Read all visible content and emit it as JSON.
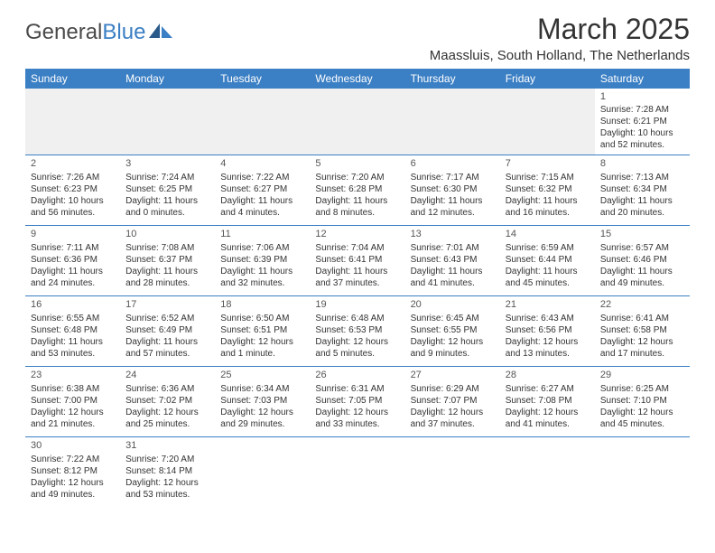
{
  "logo": {
    "text1": "General",
    "text2": "Blue"
  },
  "title": "March 2025",
  "location": "Maassluis, South Holland, The Netherlands",
  "colors": {
    "header_bg": "#3b7fc4",
    "header_text": "#ffffff",
    "border": "#3b7fc4",
    "body_text": "#333333",
    "empty_row_bg": "#f0f0f0",
    "page_bg": "#ffffff"
  },
  "day_headers": [
    "Sunday",
    "Monday",
    "Tuesday",
    "Wednesday",
    "Thursday",
    "Friday",
    "Saturday"
  ],
  "weeks": [
    [
      null,
      null,
      null,
      null,
      null,
      null,
      {
        "n": "1",
        "sr": "Sunrise: 7:28 AM",
        "ss": "Sunset: 6:21 PM",
        "dl1": "Daylight: 10 hours",
        "dl2": "and 52 minutes."
      }
    ],
    [
      {
        "n": "2",
        "sr": "Sunrise: 7:26 AM",
        "ss": "Sunset: 6:23 PM",
        "dl1": "Daylight: 10 hours",
        "dl2": "and 56 minutes."
      },
      {
        "n": "3",
        "sr": "Sunrise: 7:24 AM",
        "ss": "Sunset: 6:25 PM",
        "dl1": "Daylight: 11 hours",
        "dl2": "and 0 minutes."
      },
      {
        "n": "4",
        "sr": "Sunrise: 7:22 AM",
        "ss": "Sunset: 6:27 PM",
        "dl1": "Daylight: 11 hours",
        "dl2": "and 4 minutes."
      },
      {
        "n": "5",
        "sr": "Sunrise: 7:20 AM",
        "ss": "Sunset: 6:28 PM",
        "dl1": "Daylight: 11 hours",
        "dl2": "and 8 minutes."
      },
      {
        "n": "6",
        "sr": "Sunrise: 7:17 AM",
        "ss": "Sunset: 6:30 PM",
        "dl1": "Daylight: 11 hours",
        "dl2": "and 12 minutes."
      },
      {
        "n": "7",
        "sr": "Sunrise: 7:15 AM",
        "ss": "Sunset: 6:32 PM",
        "dl1": "Daylight: 11 hours",
        "dl2": "and 16 minutes."
      },
      {
        "n": "8",
        "sr": "Sunrise: 7:13 AM",
        "ss": "Sunset: 6:34 PM",
        "dl1": "Daylight: 11 hours",
        "dl2": "and 20 minutes."
      }
    ],
    [
      {
        "n": "9",
        "sr": "Sunrise: 7:11 AM",
        "ss": "Sunset: 6:36 PM",
        "dl1": "Daylight: 11 hours",
        "dl2": "and 24 minutes."
      },
      {
        "n": "10",
        "sr": "Sunrise: 7:08 AM",
        "ss": "Sunset: 6:37 PM",
        "dl1": "Daylight: 11 hours",
        "dl2": "and 28 minutes."
      },
      {
        "n": "11",
        "sr": "Sunrise: 7:06 AM",
        "ss": "Sunset: 6:39 PM",
        "dl1": "Daylight: 11 hours",
        "dl2": "and 32 minutes."
      },
      {
        "n": "12",
        "sr": "Sunrise: 7:04 AM",
        "ss": "Sunset: 6:41 PM",
        "dl1": "Daylight: 11 hours",
        "dl2": "and 37 minutes."
      },
      {
        "n": "13",
        "sr": "Sunrise: 7:01 AM",
        "ss": "Sunset: 6:43 PM",
        "dl1": "Daylight: 11 hours",
        "dl2": "and 41 minutes."
      },
      {
        "n": "14",
        "sr": "Sunrise: 6:59 AM",
        "ss": "Sunset: 6:44 PM",
        "dl1": "Daylight: 11 hours",
        "dl2": "and 45 minutes."
      },
      {
        "n": "15",
        "sr": "Sunrise: 6:57 AM",
        "ss": "Sunset: 6:46 PM",
        "dl1": "Daylight: 11 hours",
        "dl2": "and 49 minutes."
      }
    ],
    [
      {
        "n": "16",
        "sr": "Sunrise: 6:55 AM",
        "ss": "Sunset: 6:48 PM",
        "dl1": "Daylight: 11 hours",
        "dl2": "and 53 minutes."
      },
      {
        "n": "17",
        "sr": "Sunrise: 6:52 AM",
        "ss": "Sunset: 6:49 PM",
        "dl1": "Daylight: 11 hours",
        "dl2": "and 57 minutes."
      },
      {
        "n": "18",
        "sr": "Sunrise: 6:50 AM",
        "ss": "Sunset: 6:51 PM",
        "dl1": "Daylight: 12 hours",
        "dl2": "and 1 minute."
      },
      {
        "n": "19",
        "sr": "Sunrise: 6:48 AM",
        "ss": "Sunset: 6:53 PM",
        "dl1": "Daylight: 12 hours",
        "dl2": "and 5 minutes."
      },
      {
        "n": "20",
        "sr": "Sunrise: 6:45 AM",
        "ss": "Sunset: 6:55 PM",
        "dl1": "Daylight: 12 hours",
        "dl2": "and 9 minutes."
      },
      {
        "n": "21",
        "sr": "Sunrise: 6:43 AM",
        "ss": "Sunset: 6:56 PM",
        "dl1": "Daylight: 12 hours",
        "dl2": "and 13 minutes."
      },
      {
        "n": "22",
        "sr": "Sunrise: 6:41 AM",
        "ss": "Sunset: 6:58 PM",
        "dl1": "Daylight: 12 hours",
        "dl2": "and 17 minutes."
      }
    ],
    [
      {
        "n": "23",
        "sr": "Sunrise: 6:38 AM",
        "ss": "Sunset: 7:00 PM",
        "dl1": "Daylight: 12 hours",
        "dl2": "and 21 minutes."
      },
      {
        "n": "24",
        "sr": "Sunrise: 6:36 AM",
        "ss": "Sunset: 7:02 PM",
        "dl1": "Daylight: 12 hours",
        "dl2": "and 25 minutes."
      },
      {
        "n": "25",
        "sr": "Sunrise: 6:34 AM",
        "ss": "Sunset: 7:03 PM",
        "dl1": "Daylight: 12 hours",
        "dl2": "and 29 minutes."
      },
      {
        "n": "26",
        "sr": "Sunrise: 6:31 AM",
        "ss": "Sunset: 7:05 PM",
        "dl1": "Daylight: 12 hours",
        "dl2": "and 33 minutes."
      },
      {
        "n": "27",
        "sr": "Sunrise: 6:29 AM",
        "ss": "Sunset: 7:07 PM",
        "dl1": "Daylight: 12 hours",
        "dl2": "and 37 minutes."
      },
      {
        "n": "28",
        "sr": "Sunrise: 6:27 AM",
        "ss": "Sunset: 7:08 PM",
        "dl1": "Daylight: 12 hours",
        "dl2": "and 41 minutes."
      },
      {
        "n": "29",
        "sr": "Sunrise: 6:25 AM",
        "ss": "Sunset: 7:10 PM",
        "dl1": "Daylight: 12 hours",
        "dl2": "and 45 minutes."
      }
    ],
    [
      {
        "n": "30",
        "sr": "Sunrise: 7:22 AM",
        "ss": "Sunset: 8:12 PM",
        "dl1": "Daylight: 12 hours",
        "dl2": "and 49 minutes."
      },
      {
        "n": "31",
        "sr": "Sunrise: 7:20 AM",
        "ss": "Sunset: 8:14 PM",
        "dl1": "Daylight: 12 hours",
        "dl2": "and 53 minutes."
      },
      null,
      null,
      null,
      null,
      null
    ]
  ]
}
